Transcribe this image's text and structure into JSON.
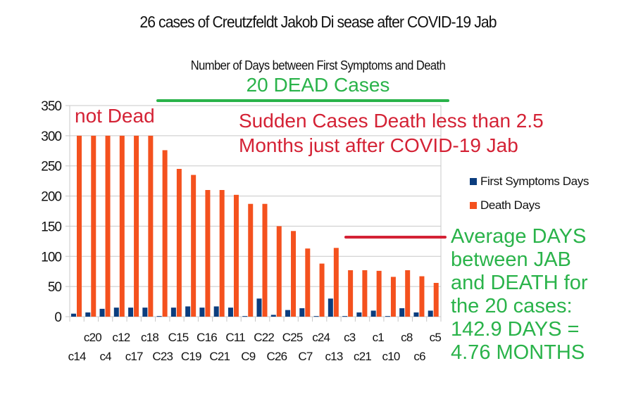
{
  "chart_data": {
    "type": "bar",
    "title": "26 cases of Creutzfeldt Jakob Di sease after COVID-19 Jab",
    "subtitle": "Number of Days between First Symptoms and Death",
    "xlabel": "",
    "ylabel": "",
    "ylim": [
      0,
      350
    ],
    "yticks": [
      0,
      50,
      100,
      150,
      200,
      250,
      300,
      350
    ],
    "grid": true,
    "legend_position": "right",
    "categories": [
      "c14",
      "c20",
      "c4",
      "c12",
      "c17",
      "c18",
      "C23",
      "C15",
      "C19",
      "C16",
      "C21",
      "C11",
      "C9",
      "C22",
      "C26",
      "C25",
      "C7",
      "c24",
      "c13",
      "c3",
      "c21",
      "c1",
      "c10",
      "c8",
      "c6",
      "c5"
    ],
    "series": [
      {
        "name": "First Symptoms Days",
        "color": "#0b3d7e",
        "values": [
          5,
          7,
          13,
          15,
          15,
          15,
          1,
          15,
          17,
          15,
          17,
          15,
          1,
          30,
          3,
          11,
          14,
          1,
          30,
          1,
          7,
          10,
          1,
          14,
          7,
          10
        ]
      },
      {
        "name": "Death Days",
        "color": "#f4511e",
        "values": [
          300,
          300,
          300,
          300,
          300,
          300,
          276,
          245,
          235,
          210,
          210,
          202,
          187,
          187,
          150,
          142,
          113,
          88,
          114,
          77,
          77,
          76,
          66,
          77,
          67,
          56
        ]
      }
    ],
    "annotations": {
      "dead_cases": "20 DEAD Cases",
      "not_dead": "not Dead",
      "sudden_line1": "Sudden Cases Death less than 2.5",
      "sudden_line2": "Months just after COVID-19 Jab",
      "average_lines": [
        "Average DAYS",
        "between JAB",
        "and DEATH for",
        "the 20 cases:",
        "142.9 DAYS =",
        "4.76 MONTHS"
      ]
    }
  },
  "colors": {
    "annotation_green": "#2ab34a",
    "annotation_red": "#d42235",
    "grid": "#c8c8c8"
  }
}
